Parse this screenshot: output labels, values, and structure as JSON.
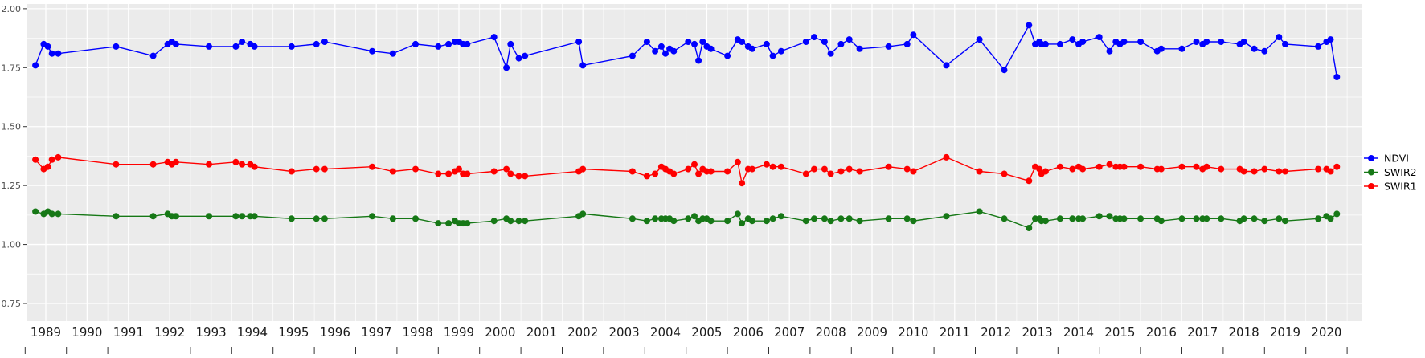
{
  "chart_data": {
    "type": "line",
    "title": "",
    "xlabel": "",
    "ylabel": "",
    "style": {
      "figure_background": "#FFFFFF",
      "panel_background": "#EBEBEB",
      "grid_color": "#FFFFFF",
      "y_tick_label_color": "#4D4D4D",
      "x_tick_label_color": "#1A1A1A",
      "tick_mark_color": "#333333"
    },
    "x_axis": {
      "tick_labels": [
        "1989",
        "1990",
        "1991",
        "1992",
        "1993",
        "1994",
        "1995",
        "1996",
        "1997",
        "1998",
        "1999",
        "2000",
        "2001",
        "2002",
        "2003",
        "2004",
        "2005",
        "2006",
        "2007",
        "2008",
        "2009",
        "2010",
        "2011",
        "2012",
        "2013",
        "2014",
        "2015",
        "2016",
        "2017",
        "2018",
        "2019",
        "2020"
      ],
      "tick_values": [
        1989,
        1990,
        1991,
        1992,
        1993,
        1994,
        1995,
        1996,
        1997,
        1998,
        1999,
        2000,
        2001,
        2002,
        2003,
        2004,
        2005,
        2006,
        2007,
        2008,
        2009,
        2010,
        2011,
        2012,
        2013,
        2014,
        2015,
        2016,
        2017,
        2018,
        2019,
        2020
      ],
      "minor_values": [
        1989.5,
        1990.5,
        1991.5,
        1992.5,
        1993.5,
        1994.5,
        1995.5,
        1996.5,
        1997.5,
        1998.5,
        1999.5,
        2000.5,
        2001.5,
        2002.5,
        2003.5,
        2004.5,
        2005.5,
        2006.5,
        2007.5,
        2008.5,
        2009.5,
        2010.5,
        2011.5,
        2012.5,
        2013.5,
        2014.5,
        2015.5,
        2016.5,
        2017.5,
        2018.5,
        2019.5,
        2020.5
      ],
      "bottom_tick_values": [
        1988.5,
        1989.5,
        1990.5,
        1991.5,
        1992.5,
        1993.5,
        1994.5,
        1995.5,
        1996.5,
        1997.5,
        1998.5,
        1999.5,
        2000.5,
        2001.5,
        2002.5,
        2003.5,
        2004.5,
        2005.5,
        2006.5,
        2007.5,
        2008.5,
        2009.5,
        2010.5,
        2011.5,
        2012.5,
        2013.5,
        2014.5,
        2015.5,
        2016.5,
        2017.5,
        2018.5,
        2019.5,
        2020.5
      ],
      "range": [
        1988.53,
        2020.83
      ]
    },
    "y_axis": {
      "tick_labels": [
        "0.75",
        "1.00",
        "1.25",
        "1.50",
        "1.75",
        "2.00"
      ],
      "tick_values": [
        0.75,
        1.0,
        1.25,
        1.5,
        1.75,
        2.0
      ],
      "minor_values": [
        0.875,
        1.125,
        1.375,
        1.625,
        1.875
      ],
      "range": [
        0.675,
        2.02
      ]
    },
    "legend": {
      "position": "right",
      "entries": [
        {
          "name": "NDVI",
          "color": "#0000FF"
        },
        {
          "name": "SWIR2",
          "color": "#167816"
        },
        {
          "name": "SWIR1",
          "color": "#FF0000"
        }
      ]
    },
    "x": [
      1988.75,
      1988.95,
      1989.05,
      1989.15,
      1989.3,
      1990.7,
      1991.6,
      1991.95,
      1992.05,
      1992.15,
      1992.95,
      1993.6,
      1993.75,
      1993.95,
      1994.05,
      1994.95,
      1995.55,
      1995.75,
      1996.9,
      1997.4,
      1997.95,
      1998.5,
      1998.75,
      1998.9,
      1999.0,
      1999.1,
      1999.2,
      1999.85,
      2000.15,
      2000.25,
      2000.45,
      2000.6,
      2001.9,
      2002.0,
      2003.2,
      2003.55,
      2003.75,
      2003.9,
      2004.0,
      2004.1,
      2004.2,
      2004.55,
      2004.7,
      2004.8,
      2004.9,
      2005.0,
      2005.1,
      2005.5,
      2005.75,
      2005.85,
      2006.0,
      2006.1,
      2006.45,
      2006.6,
      2006.8,
      2007.4,
      2007.6,
      2007.85,
      2008.0,
      2008.25,
      2008.45,
      2008.7,
      2009.4,
      2009.85,
      2010.0,
      2010.8,
      2011.6,
      2012.2,
      2012.8,
      2012.95,
      2013.05,
      2013.1,
      2013.2,
      2013.55,
      2013.85,
      2014.0,
      2014.1,
      2014.5,
      2014.75,
      2014.9,
      2015.0,
      2015.1,
      2015.5,
      2015.9,
      2016.0,
      2016.5,
      2016.85,
      2017.0,
      2017.1,
      2017.45,
      2017.9,
      2018.0,
      2018.25,
      2018.5,
      2018.85,
      2019.0,
      2019.8,
      2020.0,
      2020.1,
      2020.25
    ],
    "series": [
      {
        "name": "NDVI",
        "color": "#0000FF",
        "values": [
          1.76,
          1.85,
          1.84,
          1.81,
          1.81,
          1.84,
          1.8,
          1.85,
          1.86,
          1.85,
          1.84,
          1.84,
          1.86,
          1.85,
          1.84,
          1.84,
          1.85,
          1.86,
          1.82,
          1.81,
          1.85,
          1.84,
          1.85,
          1.86,
          1.86,
          1.85,
          1.85,
          1.88,
          1.75,
          1.85,
          1.79,
          1.8,
          1.86,
          1.76,
          1.8,
          1.86,
          1.82,
          1.84,
          1.81,
          1.83,
          1.82,
          1.86,
          1.85,
          1.78,
          1.86,
          1.84,
          1.83,
          1.8,
          1.87,
          1.86,
          1.84,
          1.83,
          1.85,
          1.8,
          1.82,
          1.86,
          1.88,
          1.86,
          1.81,
          1.85,
          1.87,
          1.83,
          1.84,
          1.85,
          1.89,
          1.76,
          1.87,
          1.74,
          1.93,
          1.85,
          1.86,
          1.85,
          1.85,
          1.85,
          1.87,
          1.85,
          1.86,
          1.88,
          1.82,
          1.86,
          1.85,
          1.86,
          1.86,
          1.82,
          1.83,
          1.83,
          1.86,
          1.85,
          1.86,
          1.86,
          1.85,
          1.86,
          1.83,
          1.82,
          1.88,
          1.85,
          1.84,
          1.86,
          1.87,
          1.71
        ]
      },
      {
        "name": "SWIR2",
        "color": "#167816",
        "values": [
          1.14,
          1.13,
          1.14,
          1.13,
          1.13,
          1.12,
          1.12,
          1.13,
          1.12,
          1.12,
          1.12,
          1.12,
          1.12,
          1.12,
          1.12,
          1.11,
          1.11,
          1.11,
          1.12,
          1.11,
          1.11,
          1.09,
          1.09,
          1.1,
          1.09,
          1.09,
          1.09,
          1.1,
          1.11,
          1.1,
          1.1,
          1.1,
          1.12,
          1.13,
          1.11,
          1.1,
          1.11,
          1.11,
          1.11,
          1.11,
          1.1,
          1.11,
          1.12,
          1.1,
          1.11,
          1.11,
          1.1,
          1.1,
          1.13,
          1.09,
          1.11,
          1.1,
          1.1,
          1.11,
          1.12,
          1.1,
          1.11,
          1.11,
          1.1,
          1.11,
          1.11,
          1.1,
          1.11,
          1.11,
          1.1,
          1.12,
          1.14,
          1.11,
          1.07,
          1.11,
          1.11,
          1.1,
          1.1,
          1.11,
          1.11,
          1.11,
          1.11,
          1.12,
          1.12,
          1.11,
          1.11,
          1.11,
          1.11,
          1.11,
          1.1,
          1.11,
          1.11,
          1.11,
          1.11,
          1.11,
          1.1,
          1.11,
          1.11,
          1.1,
          1.11,
          1.1,
          1.11,
          1.12,
          1.11,
          1.13
        ]
      },
      {
        "name": "SWIR1",
        "color": "#FF0000",
        "values": [
          1.36,
          1.32,
          1.33,
          1.36,
          1.37,
          1.34,
          1.34,
          1.35,
          1.34,
          1.35,
          1.34,
          1.35,
          1.34,
          1.34,
          1.33,
          1.31,
          1.32,
          1.32,
          1.33,
          1.31,
          1.32,
          1.3,
          1.3,
          1.31,
          1.32,
          1.3,
          1.3,
          1.31,
          1.32,
          1.3,
          1.29,
          1.29,
          1.31,
          1.32,
          1.31,
          1.29,
          1.3,
          1.33,
          1.32,
          1.31,
          1.3,
          1.32,
          1.34,
          1.3,
          1.32,
          1.31,
          1.31,
          1.31,
          1.35,
          1.26,
          1.32,
          1.32,
          1.34,
          1.33,
          1.33,
          1.3,
          1.32,
          1.32,
          1.3,
          1.31,
          1.32,
          1.31,
          1.33,
          1.32,
          1.31,
          1.37,
          1.31,
          1.3,
          1.27,
          1.33,
          1.32,
          1.3,
          1.31,
          1.33,
          1.32,
          1.33,
          1.32,
          1.33,
          1.34,
          1.33,
          1.33,
          1.33,
          1.33,
          1.32,
          1.32,
          1.33,
          1.33,
          1.32,
          1.33,
          1.32,
          1.32,
          1.31,
          1.31,
          1.32,
          1.31,
          1.31,
          1.32,
          1.32,
          1.31,
          1.33
        ]
      }
    ]
  }
}
